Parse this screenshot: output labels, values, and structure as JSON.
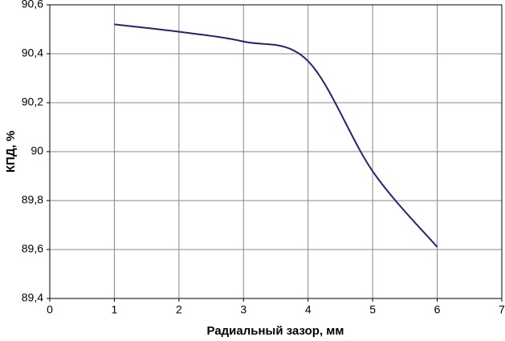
{
  "chart_data": {
    "type": "line",
    "x_label": "Радиальный зазор, мм",
    "y_label": "КПД, %",
    "x": [
      1,
      2,
      3,
      4,
      5,
      6
    ],
    "series": [
      {
        "color": "#24246e",
        "values": [
          90.52,
          90.49,
          90.45,
          90.37,
          89.92,
          89.61
        ]
      }
    ],
    "xlim": [
      0,
      7
    ],
    "xticks": [
      0,
      1,
      2,
      3,
      4,
      5,
      6,
      7
    ],
    "ylim": [
      89.4,
      90.6
    ],
    "yticks": [
      {
        "value": 89.4,
        "label": "89,4"
      },
      {
        "value": 89.6,
        "label": "89,6"
      },
      {
        "value": 89.8,
        "label": "89,8"
      },
      90,
      {
        "value": 90.2,
        "label": "90,2"
      },
      {
        "value": 90.4,
        "label": "90,4"
      },
      {
        "value": 90.6,
        "label": "90,6"
      }
    ],
    "grid": true
  }
}
